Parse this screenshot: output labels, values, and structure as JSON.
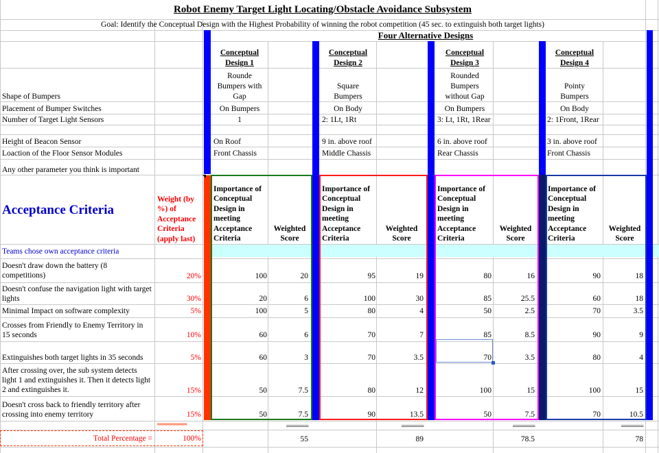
{
  "title": "Robot Enemy Target Light Locating/Obstacle Avoidance Subsystem",
  "goal": "Goal: Identify the Conceptual Design with the Highest Probability of winning the robot competition (45 sec. to extinguish both target lights)",
  "alternatives_heading": "Four Alternative Designs",
  "param_labels": {
    "shape": "Shape of Bumpers",
    "placement": "Placement of Bumper Switches",
    "sensors": "Number of Target Light Sensors",
    "beacon": "Height of Beacon Sensor",
    "floor": "Loaction of the Floor Sensor Modules",
    "other": "Any other parameter you think is important"
  },
  "designs": [
    {
      "name_1": "Conceptual",
      "name_2": "Design 1",
      "shape_1": "Rounde",
      "shape_2": "Bumpers with",
      "shape_3": "Gap",
      "placement": "On Bumpers",
      "sensors": "1",
      "beacon": "On Roof",
      "floor": "Front Chassis",
      "scores": [
        "100",
        "20",
        "100",
        "60",
        "60",
        "50",
        "50"
      ],
      "weighted": [
        "20",
        "6",
        "5",
        "6",
        "3",
        "7.5",
        "7.5"
      ],
      "total": "55"
    },
    {
      "name_1": "Conceptual",
      "name_2": "Design 2",
      "shape_1": "",
      "shape_2": "Square",
      "shape_3": "Bumpers",
      "placement": "On Body",
      "sensors": "2: 1Lt, 1Rt",
      "beacon": "9 in. above roof",
      "floor": "Middle Chassis",
      "scores": [
        "95",
        "100",
        "80",
        "70",
        "70",
        "80",
        "90"
      ],
      "weighted": [
        "19",
        "30",
        "4",
        "7",
        "3.5",
        "12",
        "13.5"
      ],
      "total": "89"
    },
    {
      "name_1": "Conceptual",
      "name_2": "Design 3",
      "shape_1": "Rounded",
      "shape_2": "Bumpers",
      "shape_3": "without Gap",
      "placement": "On Bumpers",
      "sensors": "3: Lt, 1Rt, 1Rear",
      "beacon": "6 in. above roof",
      "floor": "Rear Chassis",
      "scores": [
        "80",
        "85",
        "50",
        "85",
        "70",
        "100",
        "50"
      ],
      "weighted": [
        "16",
        "25.5",
        "2.5",
        "8.5",
        "3.5",
        "15",
        "7.5"
      ],
      "total": "78.5"
    },
    {
      "name_1": "Conceptual",
      "name_2": "Design 4",
      "shape_1": "",
      "shape_2": "Pointy",
      "shape_3": "Bumpers",
      "placement": "On Body",
      "sensors": "2: 1Front, 1Rear",
      "beacon": "3 in. above roof",
      "floor": "Front Chassis",
      "scores": [
        "90",
        "60",
        "70",
        "90",
        "80",
        "100",
        "70"
      ],
      "weighted": [
        "18",
        "18",
        "3.5",
        "9",
        "4",
        "15",
        "10.5"
      ],
      "total": "78"
    }
  ],
  "acceptance_title": "Acceptance Criteria",
  "weight_header": [
    "Weight (by",
    "%) of",
    "Acceptance",
    "Criteria",
    "(apply last)"
  ],
  "importance_header": [
    "Importance of",
    "Conceptual",
    "Design in",
    "meeting",
    "Acceptance",
    "Criteria"
  ],
  "weighted_header": [
    "Weighted",
    "Score"
  ],
  "teams_note": "Teams chose own acceptance criteria",
  "criteria": [
    {
      "label": "Doesn't draw down the battery (8 competitions)",
      "weight": "20%"
    },
    {
      "label": "Doesn't confuse the navigation light with target lights",
      "weight": "30%"
    },
    {
      "label": "Minimal Impact on software complexity",
      "weight": "5%"
    },
    {
      "label": "Crosses from Friendly to Enemy Territory in 15 seconds",
      "weight": "10%"
    },
    {
      "label": "Extinguishes both target lights in 35 seconds",
      "weight": "5%"
    },
    {
      "label": "After crossing over, the sub system detects light 1 and extinguishes it.  Then it detects light 2 and extinguishes it.",
      "weight": "15%"
    },
    {
      "label": "Doesn't cross back to friendly territory after crossing into enemy territory",
      "weight": "15%"
    }
  ],
  "total_label": "Total Percentage =",
  "total_weight": "100%",
  "equals_line": "=======",
  "colors": {
    "design1": "#1a7a1a",
    "design2": "#ff1a1a",
    "design3": "#ff00ff",
    "design4": "#1a3aa8",
    "accent_red": "#ff3300",
    "blue_bar": "#0000ff",
    "navy_bar": "#0a1a6a",
    "cyan": "#ccffff"
  }
}
